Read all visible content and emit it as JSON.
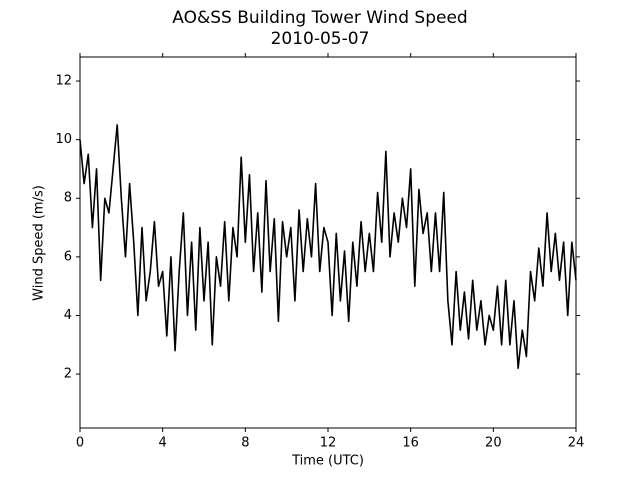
{
  "chart_data": {
    "type": "line",
    "title": "AO&SS Building Tower Wind Speed",
    "subtitle": "2010-05-07",
    "x_label": "Time (UTC)",
    "y_label": "Wind Speed (m/s)",
    "xlim": [
      0,
      24
    ],
    "xticks": [
      0,
      4,
      8,
      12,
      16,
      20,
      24
    ],
    "ylim": [
      0.16,
      12.82
    ],
    "yticks": [
      2,
      4,
      6,
      8,
      10,
      12
    ],
    "grid": false,
    "series": [
      {
        "color": "#000000",
        "x": [
          0,
          0.2,
          0.4,
          0.6,
          0.8,
          1,
          1.2,
          1.4,
          1.6,
          1.8,
          2,
          2.2,
          2.4,
          2.6,
          2.8,
          3,
          3.2,
          3.4,
          3.6,
          3.8,
          4,
          4.2,
          4.4,
          4.6,
          4.8,
          5,
          5.2,
          5.4,
          5.6,
          5.8,
          6,
          6.2,
          6.4,
          6.6,
          6.8,
          7,
          7.2,
          7.4,
          7.6,
          7.8,
          8,
          8.2,
          8.4,
          8.6,
          8.8,
          9,
          9.2,
          9.4,
          9.6,
          9.8,
          10,
          10.2,
          10.4,
          10.6,
          10.8,
          11,
          11.2,
          11.4,
          11.6,
          11.8,
          12,
          12.2,
          12.4,
          12.6,
          12.8,
          13,
          13.2,
          13.4,
          13.6,
          13.8,
          14,
          14.2,
          14.4,
          14.6,
          14.8,
          15,
          15.2,
          15.4,
          15.6,
          15.8,
          16,
          16.2,
          16.4,
          16.6,
          16.8,
          17,
          17.2,
          17.4,
          17.6,
          17.8,
          18,
          18.2,
          18.4,
          18.6,
          18.8,
          19,
          19.2,
          19.4,
          19.6,
          19.8,
          20,
          20.2,
          20.4,
          20.6,
          20.8,
          21,
          21.2,
          21.4,
          21.6,
          21.8,
          22,
          22.2,
          22.4,
          22.6,
          22.8,
          23,
          23.2,
          23.4,
          23.6,
          23.8,
          24
        ],
        "values": [
          10,
          8.5,
          9.5,
          7,
          9,
          5.2,
          8,
          7.5,
          9,
          10.5,
          8,
          6,
          8.5,
          6.5,
          4,
          7,
          4.5,
          5.5,
          7.2,
          5,
          5.5,
          3.3,
          6,
          2.8,
          5.5,
          7.5,
          4,
          6.5,
          3.5,
          7,
          4.5,
          6.5,
          3,
          6,
          5,
          7.2,
          4.5,
          7,
          6,
          9.4,
          6.5,
          8.8,
          5.5,
          7.5,
          4.8,
          8.6,
          5.5,
          7.3,
          3.8,
          7.2,
          6,
          7,
          4.5,
          7.6,
          5.5,
          7.3,
          6,
          8.5,
          5.5,
          7,
          6.5,
          4,
          6.8,
          4.5,
          6.2,
          3.8,
          6.5,
          5,
          7.2,
          5.5,
          6.8,
          5.5,
          8.2,
          6.5,
          9.6,
          6,
          7.5,
          6.5,
          8,
          7,
          9,
          5,
          8.3,
          6.8,
          7.5,
          5.5,
          7.5,
          5.5,
          8.2,
          4.5,
          3,
          5.5,
          3.5,
          4.8,
          3.2,
          5.2,
          3.5,
          4.5,
          3,
          4,
          3.5,
          5,
          3,
          5.2,
          3,
          4.5,
          2.2,
          3.5,
          2.6,
          5.5,
          4.5,
          6.3,
          5,
          7.5,
          5.5,
          6.8,
          5.2,
          6.5,
          4,
          6.5,
          5.2
        ]
      }
    ]
  }
}
